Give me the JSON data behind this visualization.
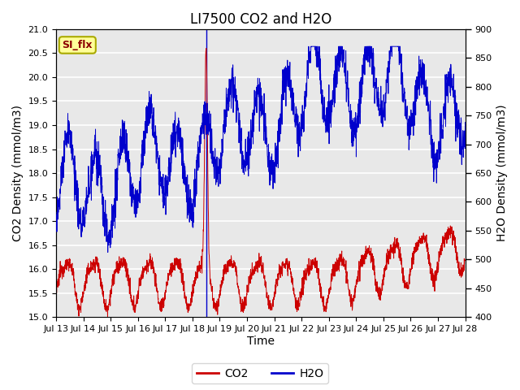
{
  "title": "LI7500 CO2 and H2O",
  "xlabel": "Time",
  "ylabel_left": "CO2 Density (mmol/m3)",
  "ylabel_right": "H2O Density (mmol/m3)",
  "ylim_left": [
    15.0,
    21.0
  ],
  "ylim_right": [
    400,
    900
  ],
  "xtick_labels": [
    "Jul 13",
    "Jul 14",
    "Jul 15",
    "Jul 16",
    "Jul 17",
    "Jul 18",
    "Jul 19",
    "Jul 20",
    "Jul 21",
    "Jul 22",
    "Jul 23",
    "Jul 24",
    "Jul 25",
    "Jul 26",
    "Jul 27",
    "Jul 28"
  ],
  "co2_color": "#cc0000",
  "h2o_color": "#0000cc",
  "annotation_text": "SI_flx",
  "annotation_box_facecolor": "#ffff99",
  "annotation_box_edgecolor": "#aaaa00",
  "vline_x": 5.5,
  "background_color": "#e8e8e8",
  "grid_color": "white",
  "title_fontsize": 12,
  "axis_label_fontsize": 10,
  "tick_fontsize": 8,
  "legend_fontsize": 10
}
